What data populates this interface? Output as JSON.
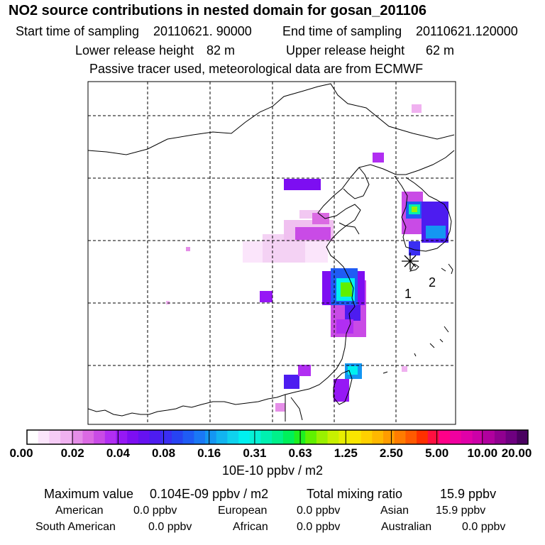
{
  "title": "NO2 source contributions in nested domain for gosan_201106",
  "sampling": {
    "start_label": "Start time of sampling",
    "start_value": "20110621. 90000",
    "end_label": "End time of sampling",
    "end_value": "20110621.120000"
  },
  "release": {
    "lower_label": "Lower release height",
    "lower_value": "82 m",
    "upper_label": "Upper release height",
    "upper_value": "62 m"
  },
  "note": "Passive tracer used, meteorological data are from ECMWF",
  "map": {
    "receptor_markers": [
      "1",
      "2"
    ]
  },
  "colorbar": {
    "labels": [
      "0.00",
      "0.02",
      "0.04",
      "0.08",
      "0.16",
      "0.31",
      "0.63",
      "1.25",
      "2.50",
      "5.00",
      "10.00",
      "20.00"
    ],
    "unit": "10E-10 ppbv / m2",
    "colors": [
      "#ffffff",
      "#fbe5fb",
      "#f6ccf6",
      "#f0b1f0",
      "#e58ee8",
      "#db6ae3",
      "#c94be6",
      "#b12ef2",
      "#9618f5",
      "#7d0ef2",
      "#6612f0",
      "#4d1cf0",
      "#3a2ef2",
      "#2743f2",
      "#1f5cf5",
      "#1a78f5",
      "#1496f2",
      "#12b4f0",
      "#0fd2ee",
      "#00f0f0",
      "#06f0d6",
      "#00f0b0",
      "#00f08a",
      "#00f05a",
      "#1ef020",
      "#60f000",
      "#9af000",
      "#c8f000",
      "#e8ee00",
      "#fae600",
      "#ffd000",
      "#ffb800",
      "#ff9c00",
      "#ff7c00",
      "#ff5a00",
      "#ff3000",
      "#ff1040",
      "#ff0088",
      "#f000a0",
      "#e000a8",
      "#cc00a8",
      "#b0009e",
      "#900090",
      "#6e0080",
      "#4a0060"
    ]
  },
  "stats": {
    "max_label": "Maximum value",
    "max_value": "0.104E-09 ppbv / m2",
    "total_label": "Total mixing ratio",
    "total_value": "15.9 ppbv",
    "regions": [
      {
        "name": "American",
        "value": "0.0 ppbv"
      },
      {
        "name": "European",
        "value": "0.0 ppbv"
      },
      {
        "name": "Asian",
        "value": "15.9 ppbv"
      },
      {
        "name": "South American",
        "value": "0.0 ppbv"
      },
      {
        "name": "African",
        "value": "0.0 ppbv"
      },
      {
        "name": "Australian",
        "value": "0.0 ppbv"
      }
    ]
  }
}
